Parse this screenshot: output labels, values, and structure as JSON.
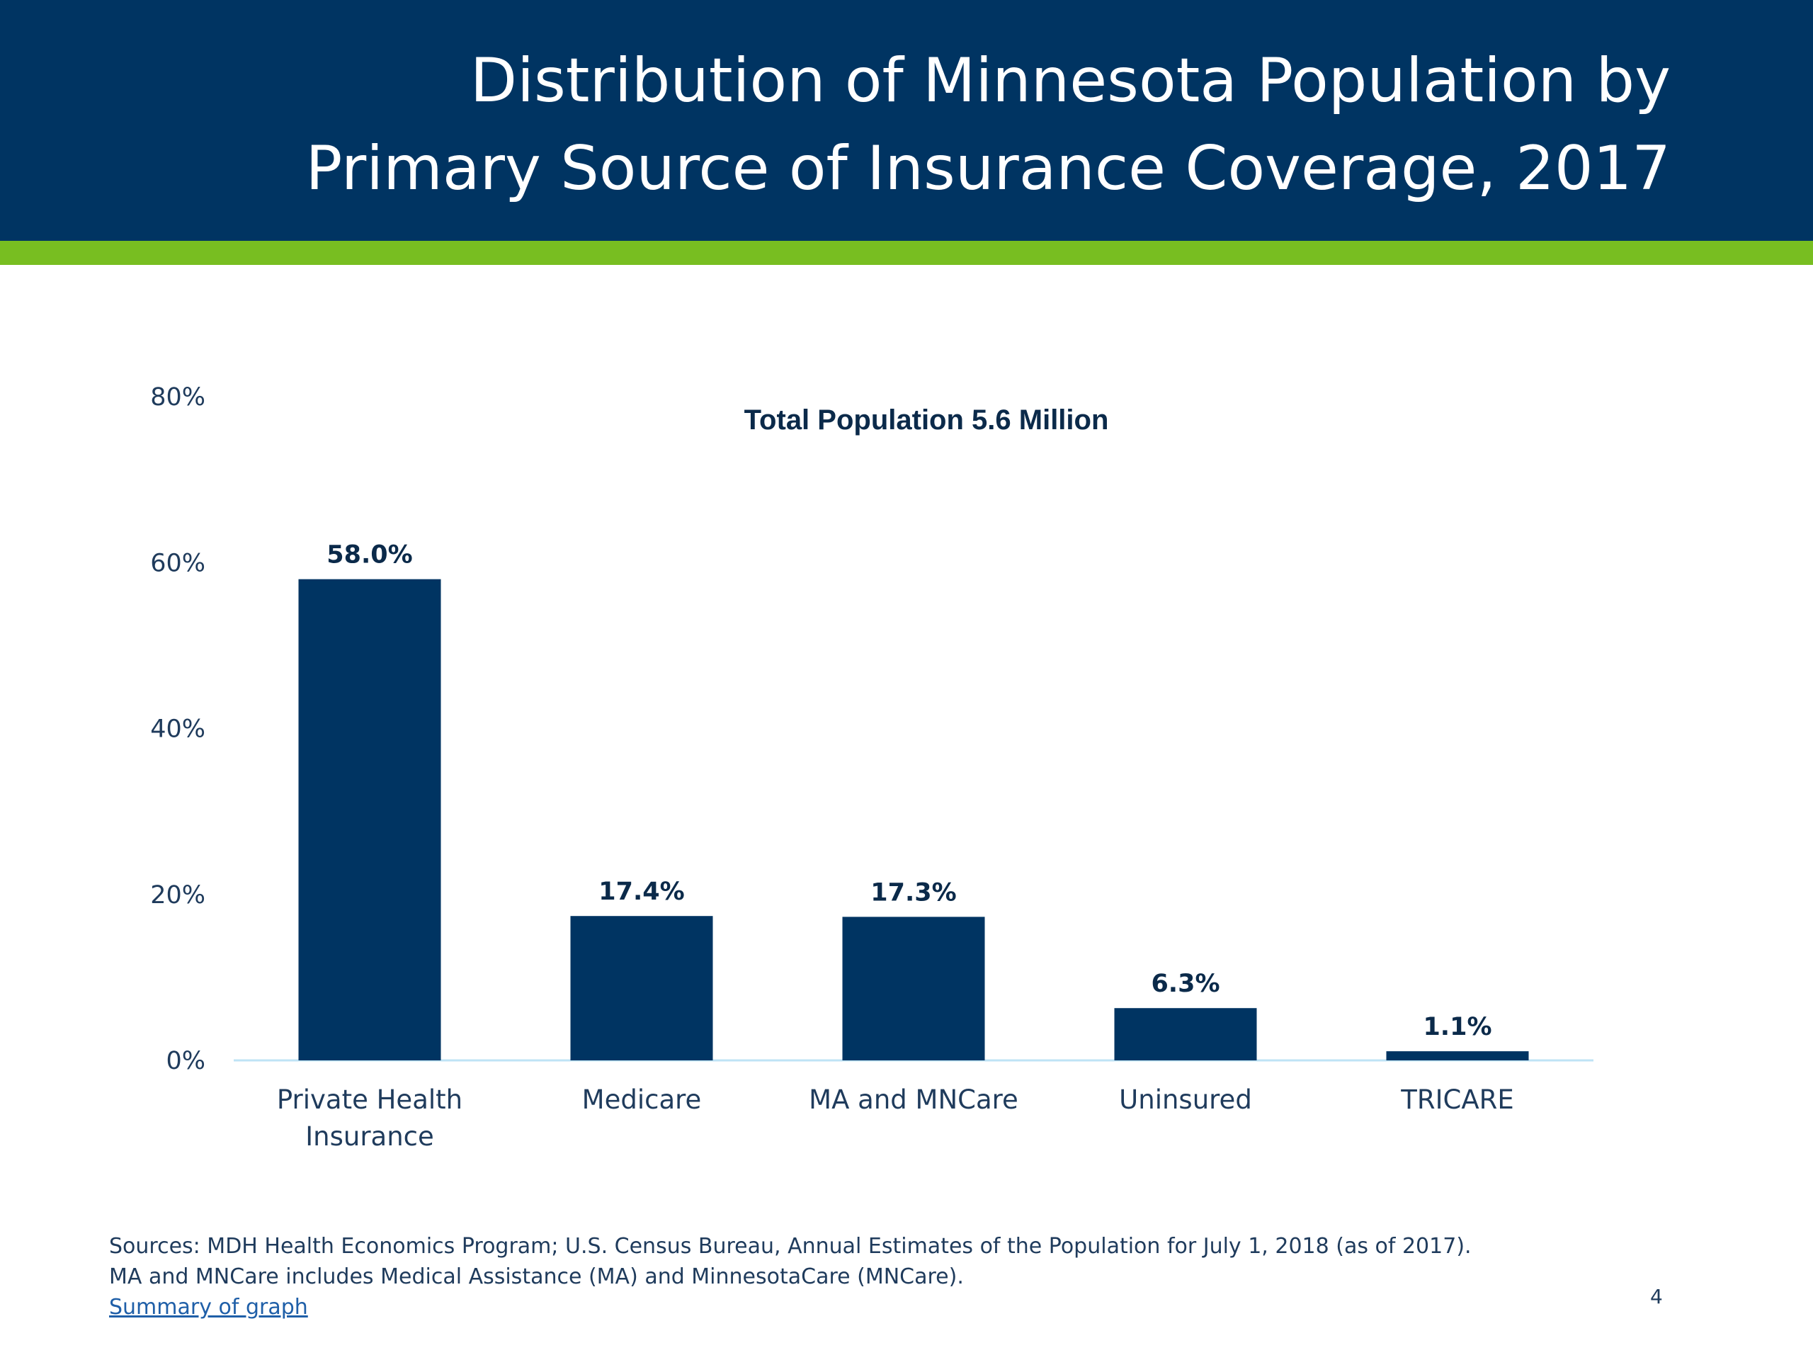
{
  "slide": {
    "title_line1": "Distribution of Minnesota Population by",
    "title_line2": "Primary Source of Insurance Coverage, 2017",
    "page_number": "4"
  },
  "colors": {
    "header_bg": "#003462",
    "accent": "#78BE21",
    "bar": "#003462",
    "baseline": "#BFE3F5"
  },
  "chart_data": {
    "type": "bar",
    "title": "Total Population 5.6 Million",
    "categories": [
      [
        "Private Health",
        "Insurance"
      ],
      [
        "Medicare"
      ],
      [
        "MA and MNCare"
      ],
      [
        "Uninsured"
      ],
      [
        "TRICARE"
      ]
    ],
    "values": [
      58.0,
      17.4,
      17.3,
      6.3,
      1.1
    ],
    "data_labels": [
      "58.0%",
      "17.4%",
      "17.3%",
      "6.3%",
      "1.1%"
    ],
    "ylim": [
      0,
      80
    ],
    "yticks": [
      0,
      20,
      40,
      60,
      80
    ],
    "ytick_labels": [
      "0%",
      "20%",
      "40%",
      "60%",
      "80%"
    ],
    "grid": false,
    "xlabel": "",
    "ylabel": ""
  },
  "footer": {
    "sources": "Sources: MDH Health Economics Program; U.S. Census Bureau, Annual Estimates of the Population for July 1, 2018 (as of 2017).",
    "note": "MA and MNCare includes Medical Assistance (MA) and MinnesotaCare (MNCare).",
    "link_text": "Summary of graph"
  }
}
